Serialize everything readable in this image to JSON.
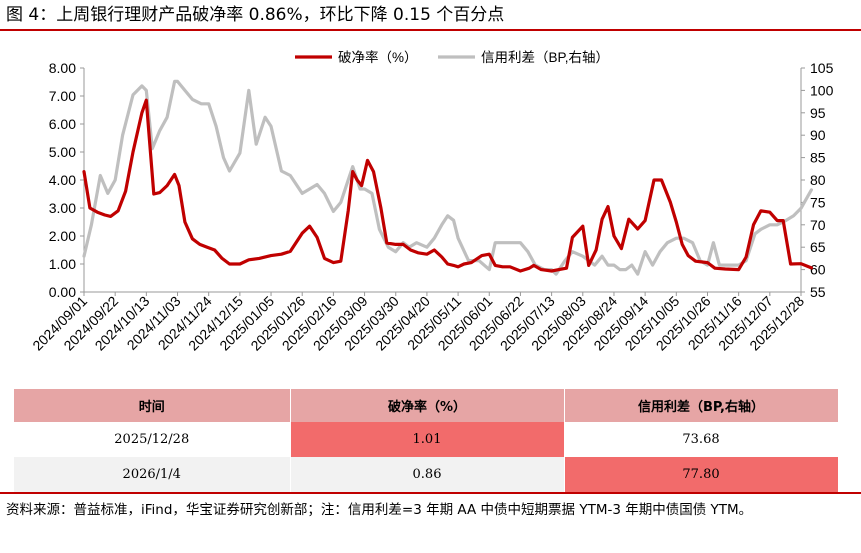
{
  "title": "图 4：上周银行理财产品破净率 0.86%，环比下降 0.15 个百分点",
  "colors": {
    "accent": "#c00000",
    "series_left": "#c00000",
    "series_right": "#bfbfbf",
    "table_header": "#e6a5a5",
    "highlight": "#f26b6b"
  },
  "chart_data": {
    "type": "line",
    "title": "",
    "legend": [
      "破净率（%）",
      "信用利差（BP,右轴）"
    ],
    "legend_position": "top",
    "x_tick_labels": [
      "2024/09/01",
      "2024/09/22",
      "2024/10/13",
      "2024/11/03",
      "2024/11/24",
      "2024/12/15",
      "2025/01/05",
      "2025/01/26",
      "2025/02/16",
      "2025/03/09",
      "2025/03/30",
      "2025/04/20",
      "2025/05/11",
      "2025/06/01",
      "2025/06/22",
      "2025/07/13",
      "2025/08/03",
      "2025/08/24",
      "2025/09/14",
      "2025/10/05",
      "2025/10/26",
      "2025/11/16",
      "2025/12/07",
      "2025/12/28"
    ],
    "y_left": {
      "ylim": [
        0,
        8
      ],
      "ticks": [
        "0.00",
        "1.00",
        "2.00",
        "3.00",
        "4.00",
        "5.00",
        "6.00",
        "7.00",
        "8.00"
      ]
    },
    "y_right": {
      "ylim": [
        55,
        105
      ],
      "ticks": [
        "55",
        "60",
        "65",
        "70",
        "75",
        "80",
        "85",
        "90",
        "95",
        "100",
        "105"
      ]
    },
    "series": [
      {
        "name": "破净率（%）",
        "axis": "left",
        "points": [
          [
            "2024/09/01",
            4.3
          ],
          [
            "2024/09/05",
            3.0
          ],
          [
            "2024/09/10",
            2.85
          ],
          [
            "2024/09/15",
            2.75
          ],
          [
            "2024/09/19",
            2.7
          ],
          [
            "2024/09/24",
            2.9
          ],
          [
            "2024/09/29",
            3.6
          ],
          [
            "2024/10/04",
            5.0
          ],
          [
            "2024/10/10",
            6.4
          ],
          [
            "2024/10/13",
            6.85
          ],
          [
            "2024/10/15",
            5.5
          ],
          [
            "2024/10/18",
            3.5
          ],
          [
            "2024/10/22",
            3.55
          ],
          [
            "2024/10/27",
            3.8
          ],
          [
            "2024/11/01",
            4.2
          ],
          [
            "2024/11/04",
            3.8
          ],
          [
            "2024/11/08",
            2.5
          ],
          [
            "2024/11/13",
            1.9
          ],
          [
            "2024/11/18",
            1.7
          ],
          [
            "2024/11/23",
            1.6
          ],
          [
            "2024/11/28",
            1.5
          ],
          [
            "2024/12/03",
            1.2
          ],
          [
            "2024/12/08",
            1.0
          ],
          [
            "2024/12/15",
            1.0
          ],
          [
            "2024/12/21",
            1.15
          ],
          [
            "2024/12/28",
            1.2
          ],
          [
            "2025/01/05",
            1.3
          ],
          [
            "2025/01/12",
            1.35
          ],
          [
            "2025/01/18",
            1.45
          ],
          [
            "2025/01/26",
            2.1
          ],
          [
            "2025/01/31",
            2.35
          ],
          [
            "2025/02/05",
            1.95
          ],
          [
            "2025/02/10",
            1.2
          ],
          [
            "2025/02/16",
            1.05
          ],
          [
            "2025/02/21",
            1.1
          ],
          [
            "2025/02/26",
            2.9
          ],
          [
            "2025/03/01",
            4.3
          ],
          [
            "2025/03/04",
            4.0
          ],
          [
            "2025/03/07",
            3.8
          ],
          [
            "2025/03/11",
            4.7
          ],
          [
            "2025/03/15",
            4.3
          ],
          [
            "2025/03/20",
            3.0
          ],
          [
            "2025/03/24",
            1.75
          ],
          [
            "2025/03/30",
            1.7
          ],
          [
            "2025/04/04",
            1.7
          ],
          [
            "2025/04/09",
            1.5
          ],
          [
            "2025/04/14",
            1.4
          ],
          [
            "2025/04/20",
            1.35
          ],
          [
            "2025/04/25",
            1.5
          ],
          [
            "2025/04/30",
            1.25
          ],
          [
            "2025/05/04",
            1.0
          ],
          [
            "2025/05/08",
            0.95
          ],
          [
            "2025/05/11",
            0.9
          ],
          [
            "2025/05/15",
            1.0
          ],
          [
            "2025/05/20",
            1.05
          ],
          [
            "2025/05/27",
            1.3
          ],
          [
            "2025/06/01",
            1.35
          ],
          [
            "2025/06/05",
            0.95
          ],
          [
            "2025/06/10",
            0.9
          ],
          [
            "2025/06/15",
            0.9
          ],
          [
            "2025/06/22",
            0.75
          ],
          [
            "2025/06/28",
            0.85
          ],
          [
            "2025/07/01",
            0.95
          ],
          [
            "2025/07/06",
            0.8
          ],
          [
            "2025/07/13",
            0.75
          ],
          [
            "2025/07/18",
            0.8
          ],
          [
            "2025/07/23",
            0.85
          ],
          [
            "2025/07/27",
            1.95
          ],
          [
            "2025/08/03",
            2.35
          ],
          [
            "2025/08/07",
            0.95
          ],
          [
            "2025/08/12",
            1.5
          ],
          [
            "2025/08/16",
            2.6
          ],
          [
            "2025/08/20",
            3.05
          ],
          [
            "2025/08/24",
            2.0
          ],
          [
            "2025/08/29",
            1.55
          ],
          [
            "2025/09/03",
            2.6
          ],
          [
            "2025/09/09",
            2.25
          ],
          [
            "2025/09/14",
            2.55
          ],
          [
            "2025/09/20",
            4.0
          ],
          [
            "2025/09/25",
            4.0
          ],
          [
            "2025/10/01",
            3.2
          ],
          [
            "2025/10/05",
            2.5
          ],
          [
            "2025/10/09",
            1.7
          ],
          [
            "2025/10/13",
            1.3
          ],
          [
            "2025/10/18",
            1.1
          ],
          [
            "2025/10/26",
            1.05
          ],
          [
            "2025/10/31",
            0.85
          ],
          [
            "2025/11/07",
            0.82
          ],
          [
            "2025/11/16",
            0.8
          ],
          [
            "2025/11/21",
            1.25
          ],
          [
            "2025/11/26",
            2.4
          ],
          [
            "2025/12/01",
            2.9
          ],
          [
            "2025/12/07",
            2.85
          ],
          [
            "2025/12/12",
            2.55
          ],
          [
            "2025/12/16",
            2.55
          ],
          [
            "2025/12/21",
            1.0
          ],
          [
            "2025/12/28",
            1.01
          ],
          [
            "2026/01/04",
            0.86
          ]
        ]
      },
      {
        "name": "信用利差（BP,右轴）",
        "axis": "right",
        "points": [
          [
            "2024/09/01",
            63
          ],
          [
            "2024/09/06",
            70
          ],
          [
            "2024/09/12",
            81
          ],
          [
            "2024/09/17",
            77
          ],
          [
            "2024/09/22",
            80
          ],
          [
            "2024/09/27",
            90
          ],
          [
            "2024/10/04",
            99
          ],
          [
            "2024/10/10",
            101
          ],
          [
            "2024/10/13",
            100
          ],
          [
            "2024/10/17",
            87
          ],
          [
            "2024/10/22",
            91
          ],
          [
            "2024/10/27",
            94
          ],
          [
            "2024/11/01",
            102
          ],
          [
            "2024/11/03",
            102
          ],
          [
            "2024/11/08",
            100
          ],
          [
            "2024/11/13",
            98
          ],
          [
            "2024/11/19",
            97
          ],
          [
            "2024/11/24",
            97
          ],
          [
            "2024/11/29",
            92
          ],
          [
            "2024/12/04",
            85
          ],
          [
            "2024/12/08",
            82
          ],
          [
            "2024/12/15",
            86
          ],
          [
            "2024/12/21",
            100
          ],
          [
            "2024/12/26",
            88
          ],
          [
            "2025/01/01",
            94
          ],
          [
            "2025/01/05",
            92
          ],
          [
            "2025/01/12",
            82
          ],
          [
            "2025/01/18",
            81
          ],
          [
            "2025/01/26",
            77
          ],
          [
            "2025/01/31",
            78
          ],
          [
            "2025/02/05",
            79
          ],
          [
            "2025/02/10",
            77
          ],
          [
            "2025/02/16",
            73
          ],
          [
            "2025/02/21",
            75
          ],
          [
            "2025/02/26",
            80
          ],
          [
            "2025/03/01",
            83
          ],
          [
            "2025/03/06",
            78
          ],
          [
            "2025/03/09",
            78
          ],
          [
            "2025/03/14",
            77
          ],
          [
            "2025/03/19",
            69
          ],
          [
            "2025/03/25",
            65
          ],
          [
            "2025/03/30",
            64
          ],
          [
            "2025/04/04",
            66
          ],
          [
            "2025/04/08",
            65
          ],
          [
            "2025/04/13",
            66
          ],
          [
            "2025/04/20",
            65
          ],
          [
            "2025/04/25",
            67
          ],
          [
            "2025/04/30",
            70
          ],
          [
            "2025/05/04",
            72
          ],
          [
            "2025/05/08",
            71
          ],
          [
            "2025/05/11",
            67
          ],
          [
            "2025/05/18",
            62
          ],
          [
            "2025/05/25",
            62
          ],
          [
            "2025/06/01",
            60
          ],
          [
            "2025/06/05",
            66
          ],
          [
            "2025/06/10",
            66
          ],
          [
            "2025/06/15",
            66
          ],
          [
            "2025/06/22",
            66
          ],
          [
            "2025/06/27",
            64
          ],
          [
            "2025/07/02",
            61
          ],
          [
            "2025/07/08",
            60
          ],
          [
            "2025/07/13",
            60
          ],
          [
            "2025/07/16",
            59
          ],
          [
            "2025/07/22",
            62
          ],
          [
            "2025/07/27",
            64
          ],
          [
            "2025/08/03",
            63
          ],
          [
            "2025/08/07",
            62
          ],
          [
            "2025/08/11",
            61
          ],
          [
            "2025/08/16",
            63
          ],
          [
            "2025/08/20",
            61
          ],
          [
            "2025/08/24",
            61
          ],
          [
            "2025/08/28",
            60
          ],
          [
            "2025/09/01",
            60
          ],
          [
            "2025/09/05",
            61
          ],
          [
            "2025/09/09",
            59
          ],
          [
            "2025/09/14",
            64
          ],
          [
            "2025/09/19",
            61
          ],
          [
            "2025/09/24",
            64
          ],
          [
            "2025/09/29",
            66
          ],
          [
            "2025/10/05",
            67
          ],
          [
            "2025/10/10",
            67
          ],
          [
            "2025/10/16",
            66
          ],
          [
            "2025/10/21",
            62
          ],
          [
            "2025/10/26",
            61
          ],
          [
            "2025/10/30",
            66
          ],
          [
            "2025/11/03",
            61
          ],
          [
            "2025/11/09",
            61
          ],
          [
            "2025/11/16",
            61
          ],
          [
            "2025/11/21",
            62
          ],
          [
            "2025/11/27",
            68
          ],
          [
            "2025/12/01",
            69
          ],
          [
            "2025/12/07",
            70
          ],
          [
            "2025/12/12",
            70
          ],
          [
            "2025/12/18",
            71
          ],
          [
            "2025/12/23",
            72
          ],
          [
            "2025/12/28",
            73.68
          ],
          [
            "2026/01/04",
            77.8
          ]
        ]
      }
    ]
  },
  "table": {
    "headers": [
      "时间",
      "破净率（%）",
      "信用利差（BP,右轴）"
    ],
    "rows": [
      [
        "2025/12/28",
        "1.01",
        "73.68"
      ],
      [
        "2026/1/4",
        "0.86",
        "77.80"
      ]
    ]
  },
  "source": "资料来源：普益标准，iFind，华宝证券研究创新部；注：信用利差=3 年期 AA 中债中短期票据 YTM-3 年期中债国债 YTM。"
}
